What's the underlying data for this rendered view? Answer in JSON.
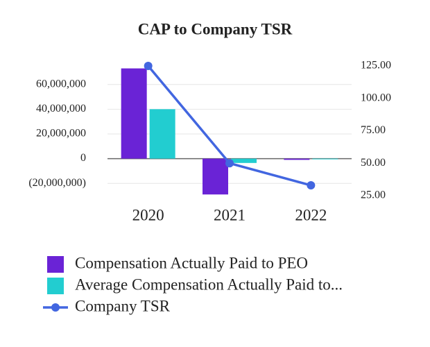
{
  "chart_data": {
    "type": "bar-line",
    "title": "CAP to Company TSR",
    "categories": [
      "2020",
      "2021",
      "2022"
    ],
    "series": [
      {
        "name": "Compensation Actually Paid to PEO",
        "color": "#6a23d6",
        "type": "bar",
        "values": [
          73000000,
          -29000000,
          -1000000
        ]
      },
      {
        "name": "Average Compensation Actually Paid to...",
        "color": "#22cdd0",
        "type": "bar",
        "values": [
          40000000,
          -3500000,
          -500000
        ]
      },
      {
        "name": "Company TSR",
        "color": "#4266e0",
        "type": "line",
        "axis": "y2",
        "values": [
          125,
          50,
          33
        ]
      }
    ],
    "ylim": [
      -30000000,
      75000000
    ],
    "yticks": [
      {
        "value": -20000000,
        "label": "(20,000,000)"
      },
      0,
      {
        "value": 20000000,
        "label": "20,000,000"
      },
      {
        "value": 40000000,
        "label": "40,000,000"
      },
      {
        "value": 60000000,
        "label": "60,000,000"
      }
    ],
    "y2lim": [
      25,
      125
    ],
    "y2ticks": [
      {
        "value": 25,
        "label": "25.00"
      },
      {
        "value": 50,
        "label": "50.00"
      },
      {
        "value": 75,
        "label": "75.00"
      },
      {
        "value": 100,
        "label": "100.00"
      },
      {
        "value": 125,
        "label": "125.00"
      }
    ],
    "grid": true
  }
}
